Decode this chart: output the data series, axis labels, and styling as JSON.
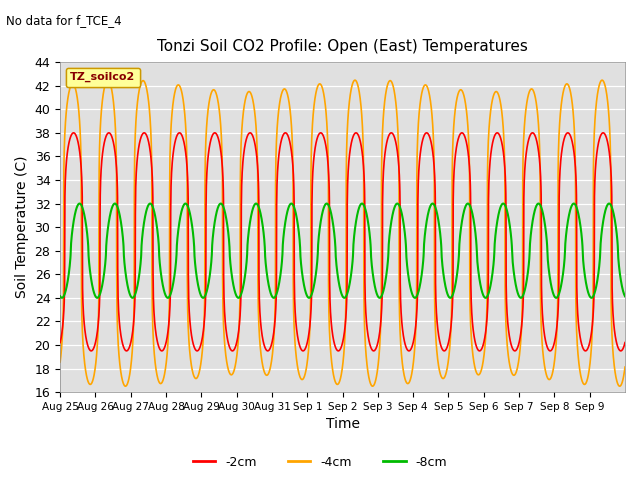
{
  "title": "Tonzi Soil CO2 Profile: Open (East) Temperatures",
  "subtitle": "No data for f_TCE_4",
  "xlabel": "Time",
  "ylabel": "Soil Temperature (C)",
  "ylim": [
    16,
    44
  ],
  "yticks": [
    16,
    18,
    20,
    22,
    24,
    26,
    28,
    30,
    32,
    34,
    36,
    38,
    40,
    42,
    44
  ],
  "xtick_labels": [
    "Aug 25",
    "Aug 26",
    "Aug 27",
    "Aug 28",
    "Aug 29",
    "Aug 30",
    "Aug 31",
    "Sep 1",
    "Sep 2",
    "Sep 3",
    "Sep 4",
    "Sep 5",
    "Sep 6",
    "Sep 7",
    "Sep 8",
    "Sep 9"
  ],
  "legend_label": "TZ_soilco2",
  "series_labels": [
    "-2cm",
    "-4cm",
    "-8cm"
  ],
  "series_colors": [
    "#FF0000",
    "#FFA500",
    "#00BB00"
  ],
  "background_color": "#E0E0E0",
  "legend_box_color": "#FFFF99",
  "legend_box_edge": "#CC9900",
  "n_days": 16,
  "cm4_min": 17.0,
  "cm4_max_base": 42.0,
  "cm4_max_vary": 1.5,
  "cm2_min": 19.5,
  "cm2_max": 38.0,
  "cm8_min": 24.0,
  "cm8_max": 32.0,
  "cm4_phase": 0.35,
  "cm2_phase": 0.38,
  "cm8_phase": 0.55,
  "peak_sharpness": 4.0,
  "samples_per_day": 200
}
